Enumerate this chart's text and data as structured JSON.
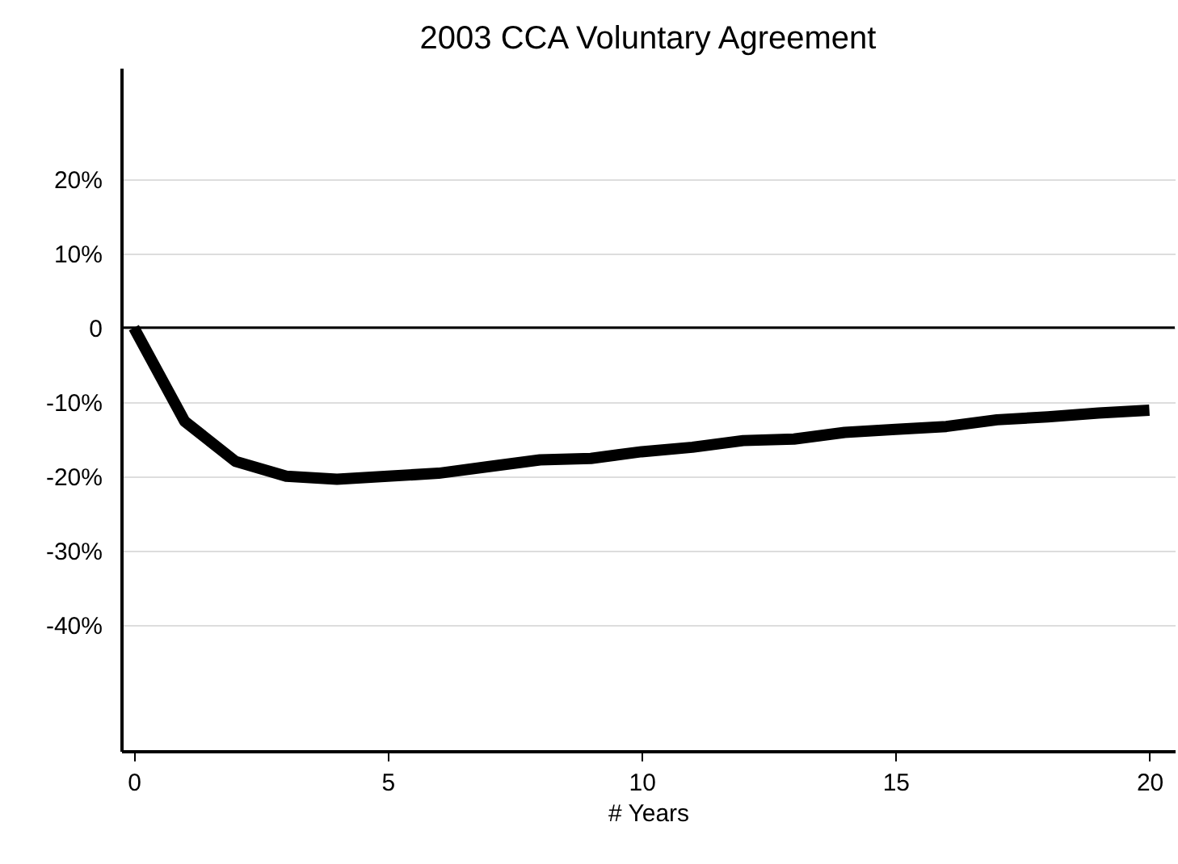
{
  "chart_data": {
    "type": "line",
    "title": "2003 CCA Voluntary Agreement",
    "xlabel": "# Years",
    "x": [
      0,
      1,
      2,
      3,
      4,
      5,
      6,
      7,
      8,
      9,
      10,
      11,
      12,
      13,
      14,
      15,
      16,
      17,
      18,
      19,
      20
    ],
    "series": [
      {
        "color": "#000000",
        "values": [
          0,
          -12.6,
          -18,
          -20,
          -20.4,
          -20,
          -19.6,
          -18.7,
          -17.8,
          -17.6,
          -16.7,
          -16.1,
          -15.2,
          -15,
          -14.1,
          -13.7,
          -13.3,
          -12.4,
          -12,
          -11.5,
          -11.1
        ]
      }
    ],
    "xlim": [
      -0.25,
      20.5
    ],
    "xticks": [
      0,
      5,
      10,
      15,
      20
    ],
    "ylim": [
      -57,
      35
    ],
    "yticks": [
      {
        "value": 20,
        "label": "20%"
      },
      {
        "value": 10,
        "label": "10%"
      },
      0,
      {
        "value": -10,
        "label": "-10%"
      },
      {
        "value": -20,
        "label": "-20%"
      },
      {
        "value": -30,
        "label": "-30%"
      },
      {
        "value": -40,
        "label": "-40%"
      }
    ],
    "grid": "y",
    "ref_lines": [
      {
        "axis": "y",
        "value": 0,
        "color": "#000000"
      }
    ]
  }
}
